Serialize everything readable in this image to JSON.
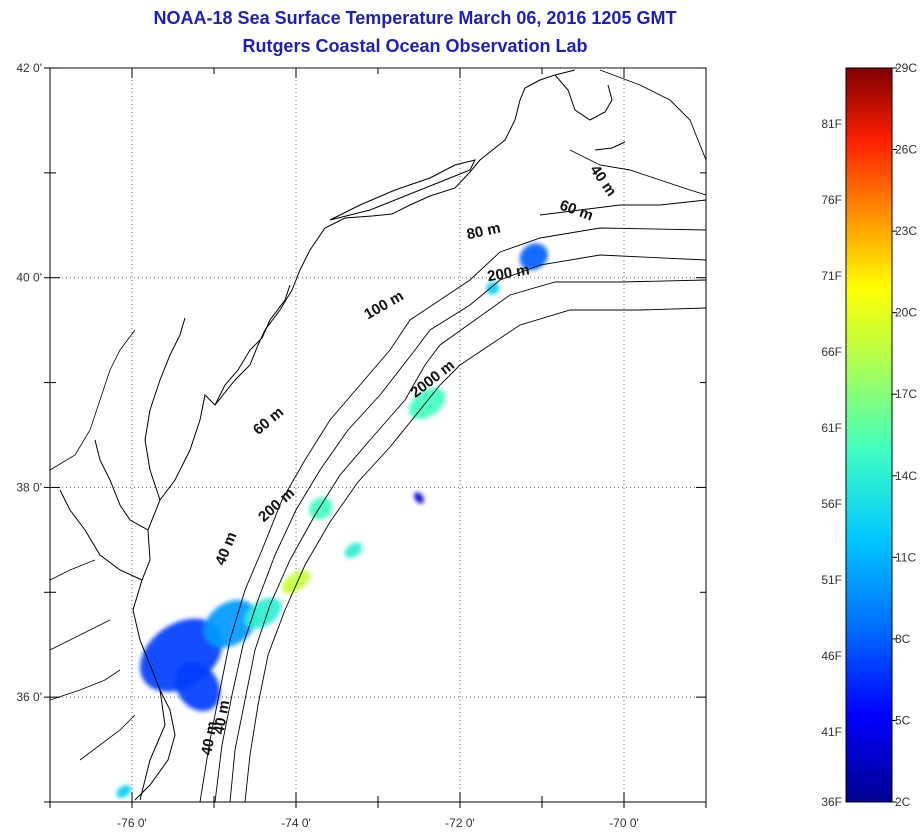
{
  "title": "NOAA-18 Sea Surface Temperature March 06, 2016 1205 GMT",
  "subtitle": "Rutgers Coastal Ocean Observation Lab",
  "map": {
    "lon_range": [
      -77,
      -69
    ],
    "lat_range": [
      35,
      42
    ],
    "lon_ticks": [
      {
        "value": -76,
        "label": "-76 0'"
      },
      {
        "value": -74,
        "label": "-74 0'"
      },
      {
        "value": -72,
        "label": "-72 0'"
      },
      {
        "value": -70,
        "label": "-70 0'"
      }
    ],
    "lat_ticks": [
      {
        "value": 42,
        "label": "42 0'"
      },
      {
        "value": 40,
        "label": "40 0'"
      },
      {
        "value": 38,
        "label": "38 0'"
      },
      {
        "value": 36,
        "label": "36 0'"
      }
    ],
    "grid": "dotted",
    "contour_labels": [
      {
        "text": "40 m",
        "lon": -70.3,
        "lat": 40.9,
        "angle": 55
      },
      {
        "text": "60 m",
        "lon": -70.6,
        "lat": 40.6,
        "angle": 20
      },
      {
        "text": "80 m",
        "lon": -71.7,
        "lat": 40.4,
        "angle": -12
      },
      {
        "text": "200 m",
        "lon": -71.4,
        "lat": 40.0,
        "angle": -10
      },
      {
        "text": "100 m",
        "lon": -72.9,
        "lat": 39.7,
        "angle": -30
      },
      {
        "text": "2000 m",
        "lon": -72.3,
        "lat": 39.0,
        "angle": -38
      },
      {
        "text": "60 m",
        "lon": -74.3,
        "lat": 38.6,
        "angle": -40
      },
      {
        "text": "200 m",
        "lon": -74.2,
        "lat": 37.8,
        "angle": -42
      },
      {
        "text": "40 m",
        "lon": -74.8,
        "lat": 37.4,
        "angle": -68
      },
      {
        "text": "40 m",
        "lon": -75.0,
        "lat": 35.6,
        "angle": -80
      },
      {
        "text": "40 m",
        "lon": -74.85,
        "lat": 35.8,
        "angle": -80
      }
    ]
  },
  "sst_patches": [
    {
      "lon": -75.4,
      "lat": 36.4,
      "rx": 0.55,
      "ry": 0.3,
      "temp_c": 7
    },
    {
      "lon": -75.2,
      "lat": 36.1,
      "rx": 0.25,
      "ry": 0.25,
      "temp_c": 7
    },
    {
      "lon": -74.8,
      "lat": 36.7,
      "rx": 0.35,
      "ry": 0.2,
      "temp_c": 10
    },
    {
      "lon": -74.4,
      "lat": 36.8,
      "rx": 0.25,
      "ry": 0.12,
      "temp_c": 14
    },
    {
      "lon": -74.0,
      "lat": 37.1,
      "rx": 0.2,
      "ry": 0.08,
      "temp_c": 19
    },
    {
      "lon": -73.7,
      "lat": 37.8,
      "rx": 0.15,
      "ry": 0.1,
      "temp_c": 15
    },
    {
      "lon": -73.3,
      "lat": 37.4,
      "rx": 0.12,
      "ry": 0.06,
      "temp_c": 14
    },
    {
      "lon": -72.4,
      "lat": 38.8,
      "rx": 0.25,
      "ry": 0.12,
      "temp_c": 15
    },
    {
      "lon": -72.5,
      "lat": 37.9,
      "rx": 0.05,
      "ry": 0.06,
      "temp_c": 4
    },
    {
      "lon": -71.1,
      "lat": 40.2,
      "rx": 0.18,
      "ry": 0.12,
      "temp_c": 8
    },
    {
      "lon": -71.6,
      "lat": 39.9,
      "rx": 0.08,
      "ry": 0.06,
      "temp_c": 12
    },
    {
      "lon": -76.1,
      "lat": 35.1,
      "rx": 0.1,
      "ry": 0.05,
      "temp_c": 12
    }
  ],
  "colorbar": {
    "min_c": 2,
    "max_c": 29,
    "celsius_labels": [
      "29C",
      "26C",
      "23C",
      "20C",
      "17C",
      "14C",
      "11C",
      "8C",
      "5C",
      "2C"
    ],
    "fahrenheit_labels": [
      "81F",
      "76F",
      "71F",
      "66F",
      "61F",
      "56F",
      "51F",
      "46F",
      "41F",
      "36F"
    ]
  }
}
